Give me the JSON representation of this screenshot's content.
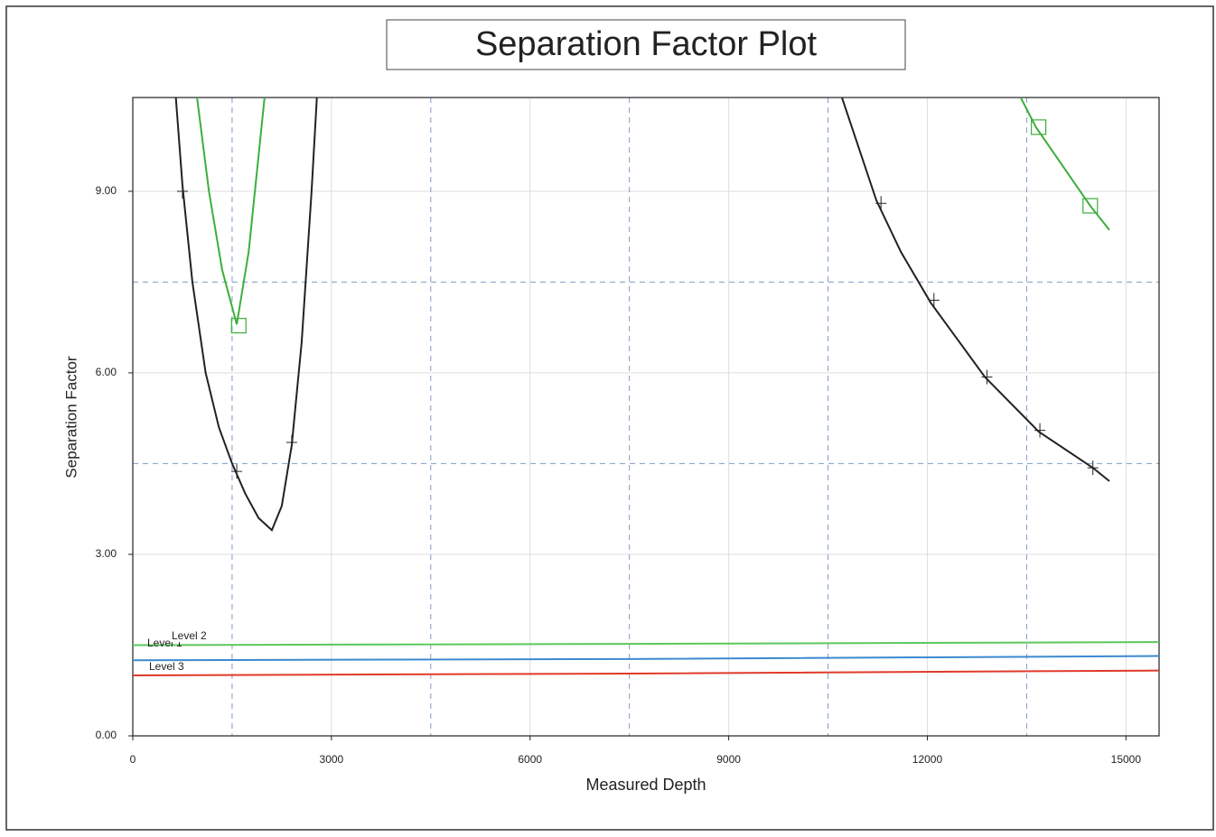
{
  "chart_data": {
    "type": "line",
    "title": "Separation Factor Plot",
    "x_label": "Measured Depth",
    "y_label": "Separation Factor",
    "xlim": [
      0,
      15500
    ],
    "ylim": [
      0,
      10.55
    ],
    "xticks": [
      0,
      3000,
      6000,
      9000,
      12000,
      15000
    ],
    "yticks": [
      {
        "value": 0,
        "label": "0.00"
      },
      {
        "value": 3,
        "label": "3.00"
      },
      {
        "value": 6,
        "label": "6.00"
      },
      {
        "value": 9,
        "label": "9.00"
      }
    ],
    "grid": true,
    "minor_xgrid": [
      1500,
      4500,
      7500,
      10500,
      13500
    ],
    "minor_ygrid": [
      4.5,
      7.5
    ],
    "series": [
      {
        "color": "#222222",
        "marker": "tick",
        "x": [
          650,
          750,
          900,
          1100,
          1300,
          1500,
          1700,
          1900,
          2100,
          2250,
          2400,
          2550,
          2700,
          2780
        ],
        "values": [
          10.55,
          9.1,
          7.5,
          6.0,
          5.1,
          4.5,
          4.0,
          3.6,
          3.4,
          3.8,
          4.8,
          6.5,
          9.0,
          10.55
        ],
        "marker_x": [
          750,
          1570,
          2400
        ],
        "marker_y": [
          9.0,
          4.37,
          4.85
        ]
      },
      {
        "color": "#222222",
        "marker": "tick",
        "x": [
          10710,
          11230,
          11600,
          12050,
          12870,
          13680,
          14500,
          14750
        ],
        "values": [
          10.55,
          8.85,
          8.0,
          7.16,
          5.93,
          5.03,
          4.43,
          4.21
        ],
        "marker_x": [
          11300,
          12100,
          12900,
          13700,
          14500
        ],
        "marker_y": [
          8.8,
          7.2,
          5.93,
          5.05,
          4.43
        ]
      },
      {
        "color": "#3cae3c",
        "marker": "square",
        "x": [
          970,
          1150,
          1350,
          1570,
          1750,
          1990
        ],
        "values": [
          10.55,
          9.0,
          7.7,
          6.8,
          8.0,
          10.55
        ],
        "marker_x": [
          1600
        ],
        "marker_y": [
          6.78
        ]
      },
      {
        "color": "#3cae3c",
        "marker": "square",
        "x": [
          13410,
          13640,
          14460,
          14750
        ],
        "values": [
          10.55,
          10.06,
          8.76,
          8.36
        ],
        "marker_x": [
          13680,
          14460
        ],
        "marker_y": [
          10.06,
          8.76
        ]
      },
      {
        "color": "#3c8ad0",
        "label": "Level 1",
        "x": [
          0,
          7500,
          15500
        ],
        "values": [
          1.25,
          1.27,
          1.32
        ]
      },
      {
        "color": "#5cc85c",
        "label": "Level 2",
        "x": [
          0,
          7500,
          15500
        ],
        "values": [
          1.5,
          1.52,
          1.55
        ]
      },
      {
        "color": "#e03a2a",
        "label": "Level 3",
        "x": [
          0,
          7500,
          15500
        ],
        "values": [
          1.0,
          1.03,
          1.08
        ]
      }
    ]
  }
}
